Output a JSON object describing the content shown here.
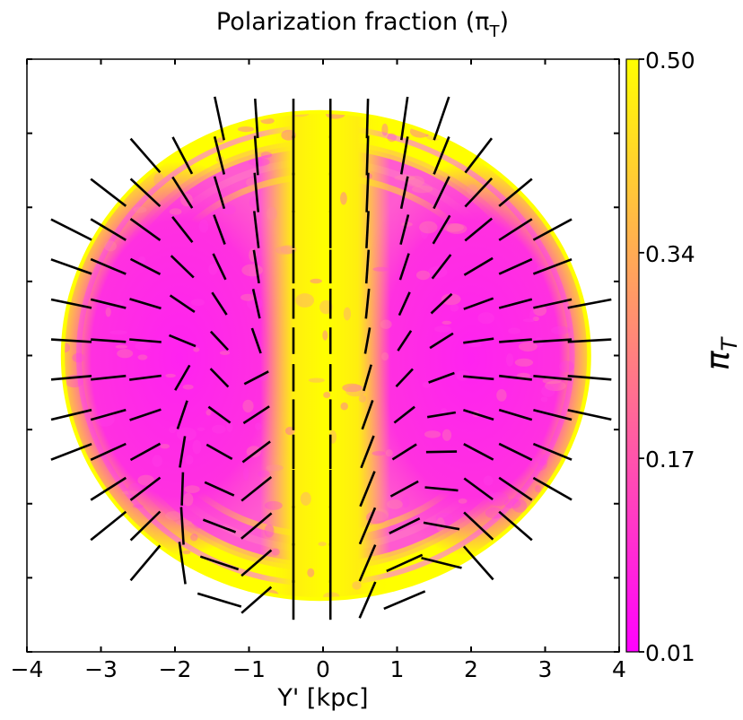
{
  "chart_data": {
    "type": "heatmap",
    "title": "Polarization fraction (π",
    "title_subscript": "T",
    "title_close": ")",
    "xlabel": "Y' [kpc]",
    "ylabel": "",
    "xlim": [
      -4,
      4
    ],
    "ylim": [
      -4,
      4
    ],
    "x_ticks": [
      -4,
      -3,
      -2,
      -1,
      0,
      1,
      2,
      3,
      4
    ],
    "x_tick_labels": [
      "−4",
      "−3",
      "−2",
      "−1",
      "0",
      "1",
      "2",
      "3",
      "4"
    ],
    "y_ticks": [
      -4,
      -3,
      -2,
      -1,
      0,
      1,
      2,
      3,
      4
    ],
    "y_tick_labels_visible": false,
    "colorbar": {
      "label": "π",
      "label_subscript": "T",
      "range": [
        0.01,
        0.5
      ],
      "ticks": [
        0.01,
        0.17,
        0.34,
        0.5
      ],
      "tick_labels": [
        "0.01",
        "0.17",
        "0.34",
        "0.50"
      ],
      "colormap": "spring",
      "colors": [
        "#ff00ff",
        "#ffff00"
      ]
    },
    "overlay": "polarization vectors (black line segments, E-field orientation)",
    "structure": {
      "outer_boundary_radius_kpc": 3.6,
      "central_bar_halfwidth_kpc": 0.55,
      "central_bar_value": 0.47,
      "lobe_value": 0.08,
      "rim_value": 0.48
    }
  },
  "colors": {
    "axes": "#000000",
    "vectors": "#000000",
    "low": "#ff00ff",
    "high": "#ffff00"
  }
}
